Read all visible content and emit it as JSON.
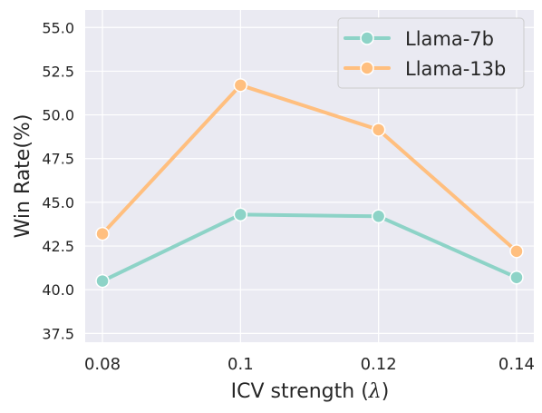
{
  "chart_data": {
    "type": "line",
    "title": "",
    "xlabel_text": "ICV strength (",
    "xlabel_symbol": "λ",
    "xlabel_close": ")",
    "ylabel": "Win Rate(%)",
    "x": [
      0.08,
      0.1,
      0.12,
      0.14
    ],
    "x_tick_labels": [
      "0.08",
      "0.1",
      "0.12",
      "0.14"
    ],
    "y_tick_labels": [
      "37.5",
      "40.0",
      "42.5",
      "45.0",
      "47.5",
      "50.0",
      "52.5",
      "55.0"
    ],
    "y_ticks": [
      37.5,
      40.0,
      42.5,
      45.0,
      47.5,
      50.0,
      52.5,
      55.0
    ],
    "xlim": [
      0.0775,
      0.1425
    ],
    "ylim": [
      37.0,
      56.0
    ],
    "grid": true,
    "legend_position": "top-right",
    "series": [
      {
        "name": "Llama-7b",
        "color": "#8dd3c7",
        "values": [
          40.5,
          44.3,
          44.2,
          40.7
        ]
      },
      {
        "name": "Llama-13b",
        "color": "#ffbf7f",
        "values": [
          43.2,
          51.7,
          49.15,
          42.2
        ]
      }
    ]
  }
}
